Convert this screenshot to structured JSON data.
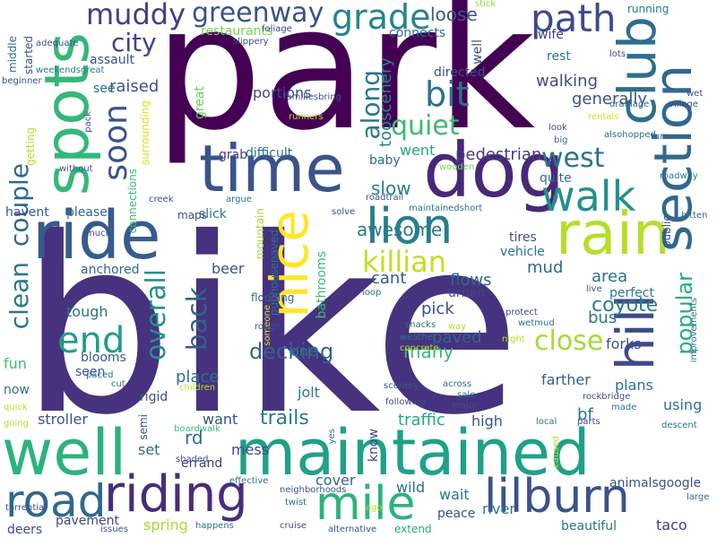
{
  "words": [
    {
      "text": "park",
      "color": "#440154"
    },
    {
      "text": "bike",
      "color": "#46327e"
    },
    {
      "text": "well",
      "color": "#2db27d"
    },
    {
      "text": "maintained",
      "color": "#1fa187"
    },
    {
      "text": "ride",
      "color": "#365c8d"
    },
    {
      "text": "dog",
      "color": "#482878"
    },
    {
      "text": "time",
      "color": "#3b528b"
    },
    {
      "text": "spots",
      "color": "#35b779"
    },
    {
      "text": "rain",
      "color": "#b5de2b"
    },
    {
      "text": "club",
      "color": "#2e6e8e"
    },
    {
      "text": "section",
      "color": "#31688e"
    },
    {
      "text": "nice",
      "color": "#fde725"
    },
    {
      "text": "hill",
      "color": "#3e4a89"
    },
    {
      "text": "lion",
      "color": "#277f8e"
    },
    {
      "text": "riding",
      "color": "#472d7b"
    },
    {
      "text": "mile",
      "color": "#2db27d"
    },
    {
      "text": "lilburn",
      "color": "#3b528b"
    },
    {
      "text": "road",
      "color": "#31688e"
    },
    {
      "text": "walk",
      "color": "#21918c"
    },
    {
      "text": "path",
      "color": "#3e4a89"
    },
    {
      "text": "grade",
      "color": "#25848e"
    },
    {
      "text": "muddy",
      "color": "#433e85"
    },
    {
      "text": "greenway",
      "color": "#3b528b"
    },
    {
      "text": "bit",
      "color": "#2c728e"
    },
    {
      "text": "city",
      "color": "#414487"
    },
    {
      "text": "soon",
      "color": "#3b528b"
    },
    {
      "text": "couple",
      "color": "#31688e"
    },
    {
      "text": "clean",
      "color": "#2a788e"
    },
    {
      "text": "end",
      "color": "#1f9e89"
    },
    {
      "text": "back",
      "color": "#355f8d"
    },
    {
      "text": "overall",
      "color": "#21918c"
    },
    {
      "text": "killian",
      "color": "#c2df23"
    },
    {
      "text": "quiet",
      "color": "#3aba76"
    },
    {
      "text": "along",
      "color": "#2a788e"
    },
    {
      "text": "west",
      "color": "#2c728e"
    },
    {
      "text": "close",
      "color": "#a5db36"
    },
    {
      "text": "popular",
      "color": "#25ac82"
    },
    {
      "text": "coyote",
      "color": "#277f8e"
    },
    {
      "text": "decking",
      "color": "#33628d"
    },
    {
      "text": "trails",
      "color": "#2a788e"
    },
    {
      "text": "loose",
      "color": "#38588c"
    },
    {
      "text": "tooscenery",
      "color": "#26828e"
    },
    {
      "text": "walking",
      "color": "#3e4a89"
    },
    {
      "text": "generally",
      "color": "#3b528b"
    },
    {
      "text": "pedestrian",
      "color": "#433e85"
    },
    {
      "text": "slow",
      "color": "#287d8e"
    },
    {
      "text": "awesome",
      "color": "#2a788e"
    },
    {
      "text": "flows",
      "color": "#31688e"
    },
    {
      "text": "cant",
      "color": "#38588c"
    },
    {
      "text": "mud",
      "color": "#31688e"
    },
    {
      "text": "area",
      "color": "#2d708e"
    },
    {
      "text": "perfect",
      "color": "#287d8e"
    },
    {
      "text": "bus",
      "color": "#2a788e"
    },
    {
      "text": "forks",
      "color": "#3b528b"
    },
    {
      "text": "farther",
      "color": "#355f8d"
    },
    {
      "text": "plans",
      "color": "#2d708e"
    },
    {
      "text": "using",
      "color": "#2c728e"
    },
    {
      "text": "paved",
      "color": "#33638d"
    },
    {
      "text": "pick",
      "color": "#3b528b"
    },
    {
      "text": "urban",
      "color": "#404688"
    },
    {
      "text": "many",
      "color": "#3aba76"
    },
    {
      "text": "one",
      "color": "#2a788e"
    },
    {
      "text": "place",
      "color": "#2d708e"
    },
    {
      "text": "jolt",
      "color": "#2a788e"
    },
    {
      "text": "want",
      "color": "#3b528b"
    },
    {
      "text": "rd",
      "color": "#31688e"
    },
    {
      "text": "mess",
      "color": "#3f4889"
    },
    {
      "text": "errand",
      "color": "#433e85"
    },
    {
      "text": "set",
      "color": "#31688e"
    },
    {
      "text": "traffic",
      "color": "#23a983"
    },
    {
      "text": "high",
      "color": "#3b528b"
    },
    {
      "text": "bf",
      "color": "#2d708e"
    },
    {
      "text": "wild",
      "color": "#2c728e"
    },
    {
      "text": "wait",
      "color": "#2a788e"
    },
    {
      "text": "peace",
      "color": "#3b528b"
    },
    {
      "text": "river",
      "color": "#2c728e"
    },
    {
      "text": "beautiful",
      "color": "#2d708e"
    },
    {
      "text": "taco",
      "color": "#433e85"
    },
    {
      "text": "animalsgoogle",
      "color": "#3b528b"
    },
    {
      "text": "cover",
      "color": "#31688e"
    },
    {
      "text": "extend",
      "color": "#23a983"
    },
    {
      "text": "stroller",
      "color": "#3b528b"
    },
    {
      "text": "spring",
      "color": "#a5db36"
    },
    {
      "text": "pavement",
      "color": "#404688"
    },
    {
      "text": "deers",
      "color": "#3e4a89"
    },
    {
      "text": "rigid",
      "color": "#3b528b"
    },
    {
      "text": "seen",
      "color": "#3b528b"
    },
    {
      "text": "blooms",
      "color": "#38598c"
    },
    {
      "text": "fun",
      "color": "#40bd72"
    },
    {
      "text": "now",
      "color": "#2d708e"
    },
    {
      "text": "tough",
      "color": "#2c728e"
    },
    {
      "text": "anchored",
      "color": "#31688e"
    },
    {
      "text": "beer",
      "color": "#3b528b"
    },
    {
      "text": "slick",
      "color": "#2a788e"
    },
    {
      "text": "maps",
      "color": "#3b528b"
    },
    {
      "text": "grab",
      "color": "#433e85"
    },
    {
      "text": "difficult",
      "color": "#2c728e"
    },
    {
      "text": "havent",
      "color": "#3b528b"
    },
    {
      "text": "please",
      "color": "#31688e"
    },
    {
      "text": "portions",
      "color": "#3e4a89"
    },
    {
      "text": "raised",
      "color": "#3b528b"
    },
    {
      "text": "restaurants",
      "color": "#7ad151"
    },
    {
      "text": "connects",
      "color": "#2c728e"
    },
    {
      "text": "wife",
      "color": "#433e85"
    },
    {
      "text": "rest",
      "color": "#2a788e"
    },
    {
      "text": "directed",
      "color": "#3b528b"
    },
    {
      "text": "went",
      "color": "#22a884"
    },
    {
      "text": "baby",
      "color": "#31688e"
    },
    {
      "text": "quite",
      "color": "#2d708e"
    },
    {
      "text": "tires",
      "color": "#3b528b"
    },
    {
      "text": "vehicle",
      "color": "#2c728e"
    },
    {
      "text": "assault",
      "color": "#3b528b"
    },
    {
      "text": "see",
      "color": "#2d708e"
    },
    {
      "text": "middle",
      "color": "#2d708e"
    },
    {
      "text": "started",
      "color": "#3b528b"
    },
    {
      "text": "running",
      "color": "#2a788e"
    },
    {
      "text": "well",
      "color": "#3b528b"
    },
    {
      "text": "mountain",
      "color": "#a5db36"
    },
    {
      "text": "bathrooms",
      "color": "#3aba76"
    },
    {
      "text": "connections",
      "color": "#3aba76"
    },
    {
      "text": "surrounding",
      "color": "#dde318"
    },
    {
      "text": "getting",
      "color": "#b5de2b"
    },
    {
      "text": "great",
      "color": "#6ccd5a"
    },
    {
      "text": "pubhousepaved",
      "color": "#2d708e"
    },
    {
      "text": "flooding",
      "color": "#33638d"
    },
    {
      "text": "public",
      "color": "#3b528b"
    },
    {
      "text": "semi",
      "color": "#3b528b"
    },
    {
      "text": "know",
      "color": "#404688"
    },
    {
      "text": "adequate",
      "color": "#3e4a89"
    },
    {
      "text": "foliage",
      "color": "#414487"
    },
    {
      "text": "slippery",
      "color": "#3b528b"
    },
    {
      "text": "stick",
      "color": "#8fd744"
    },
    {
      "text": "lots",
      "color": "#3e4a89"
    },
    {
      "text": "wet",
      "color": "#3b528b"
    },
    {
      "text": "village",
      "color": "#3e4a89"
    },
    {
      "text": "weekendsgreat",
      "color": "#2a788e"
    },
    {
      "text": "beginner",
      "color": "#3b528b"
    },
    {
      "text": "familiesbring",
      "color": "#3b528b"
    },
    {
      "text": "runners",
      "color": "#b5de2b"
    },
    {
      "text": "drainage",
      "color": "#31688e"
    },
    {
      "text": "rentals",
      "color": "#d8e219"
    },
    {
      "text": "turn",
      "color": "#33638d"
    },
    {
      "text": "look",
      "color": "#3b528b"
    },
    {
      "text": "big",
      "color": "#31688e"
    },
    {
      "text": "alsohopped",
      "color": "#2d708e"
    },
    {
      "text": "wooden",
      "color": "#7ad151"
    },
    {
      "text": "pack",
      "color": "#3b528b"
    },
    {
      "text": "without",
      "color": "#3b528b"
    },
    {
      "text": "creek",
      "color": "#3b528b"
    },
    {
      "text": "argue",
      "color": "#2c728e"
    },
    {
      "text": "roadtrail",
      "color": "#3b528b"
    },
    {
      "text": "maintainedshort",
      "color": "#2c728e"
    },
    {
      "text": "solve",
      "color": "#3e4a89"
    },
    {
      "text": "roadway",
      "color": "#2a788e"
    },
    {
      "text": "bitten",
      "color": "#2d708e"
    },
    {
      "text": "much",
      "color": "#3b528b"
    },
    {
      "text": "loop",
      "color": "#2c728e"
    },
    {
      "text": "live",
      "color": "#3b528b"
    },
    {
      "text": "improvements",
      "color": "#2d708e"
    },
    {
      "text": "protect",
      "color": "#3e4a89"
    },
    {
      "text": "wetmud",
      "color": "#2c728e"
    },
    {
      "text": "snacks",
      "color": "#2d708e"
    },
    {
      "text": "way",
      "color": "#b5de2b"
    },
    {
      "text": "someone",
      "color": "#dde318"
    },
    {
      "text": "rough",
      "color": "#3b528b"
    },
    {
      "text": "weather",
      "color": "#2d708e"
    },
    {
      "text": "concrete",
      "color": "#b5de2b"
    },
    {
      "text": "night",
      "color": "#b5de2b"
    },
    {
      "text": "scenery",
      "color": "#3b528b"
    },
    {
      "text": "across",
      "color": "#2d708e"
    },
    {
      "text": "sale",
      "color": "#2d708e"
    },
    {
      "text": "major",
      "color": "#3b528b"
    },
    {
      "text": "following",
      "color": "#3e4a89"
    },
    {
      "text": "made",
      "color": "#2c728e"
    },
    {
      "text": "rockbridge",
      "color": "#3b528b"
    },
    {
      "text": "parts",
      "color": "#3e4a89"
    },
    {
      "text": "descent",
      "color": "#2c728e"
    },
    {
      "text": "local",
      "color": "#2c728e"
    },
    {
      "text": "caused",
      "color": "#b5de2b"
    },
    {
      "text": "large",
      "color": "#2d708e"
    },
    {
      "text": "quick",
      "color": "#b5de2b"
    },
    {
      "text": "paced",
      "color": "#2c728e"
    },
    {
      "text": "cut",
      "color": "#2d708e"
    },
    {
      "text": "children",
      "color": "#b5de2b"
    },
    {
      "text": "going",
      "color": "#b5de2b"
    },
    {
      "text": "boardwalk",
      "color": "#3aba76"
    },
    {
      "text": "shaded",
      "color": "#3b528b"
    },
    {
      "text": "yes",
      "color": "#2d708e"
    },
    {
      "text": "torrential",
      "color": "#3b528b"
    },
    {
      "text": "effective",
      "color": "#2c728e"
    },
    {
      "text": "neighborhoods",
      "color": "#3b528b"
    },
    {
      "text": "twist",
      "color": "#2d708e"
    },
    {
      "text": "ago",
      "color": "#b5de2b"
    },
    {
      "text": "cruise",
      "color": "#3e4a89"
    },
    {
      "text": "issues",
      "color": "#3b528b"
    },
    {
      "text": "happens",
      "color": "#2c728e"
    },
    {
      "text": "alternative",
      "color": "#3b528b"
    }
  ]
}
